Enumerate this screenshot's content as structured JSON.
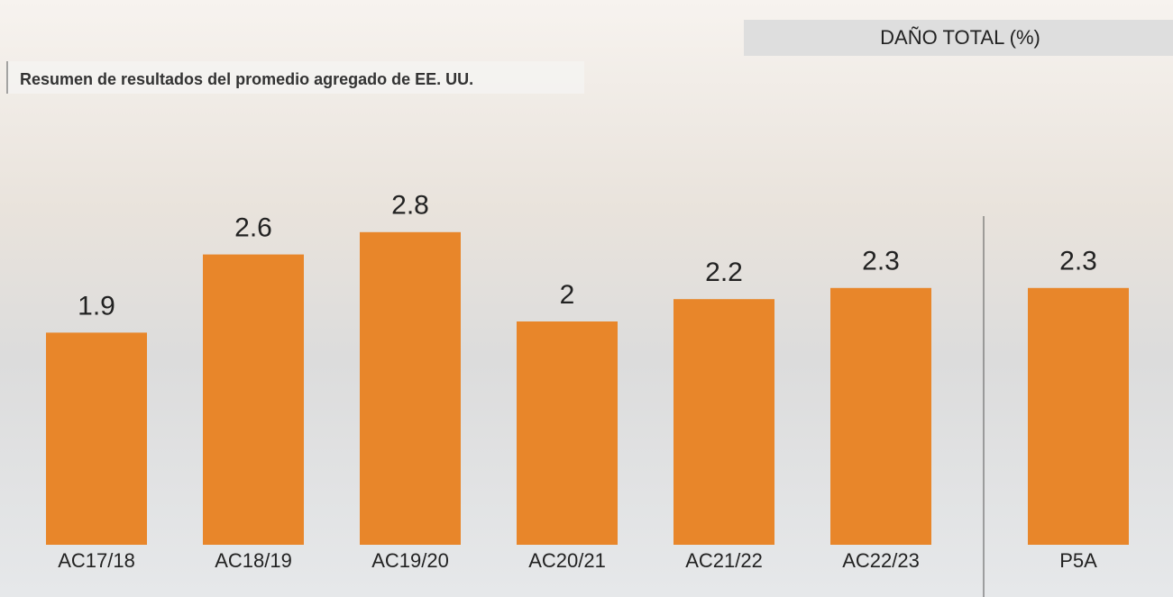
{
  "chart_data": {
    "type": "bar",
    "title": "DAÑO TOTAL (%)",
    "subtitle": "Resumen de resultados del promedio agregado de EE. UU.",
    "categories": [
      "AC17/18",
      "AC18/19",
      "AC19/20",
      "AC20/21",
      "AC21/22",
      "AC22/23",
      "P5A"
    ],
    "values": [
      1.9,
      2.6,
      2.8,
      2,
      2.2,
      2.3,
      2.3
    ],
    "color": "#e8862a"
  }
}
